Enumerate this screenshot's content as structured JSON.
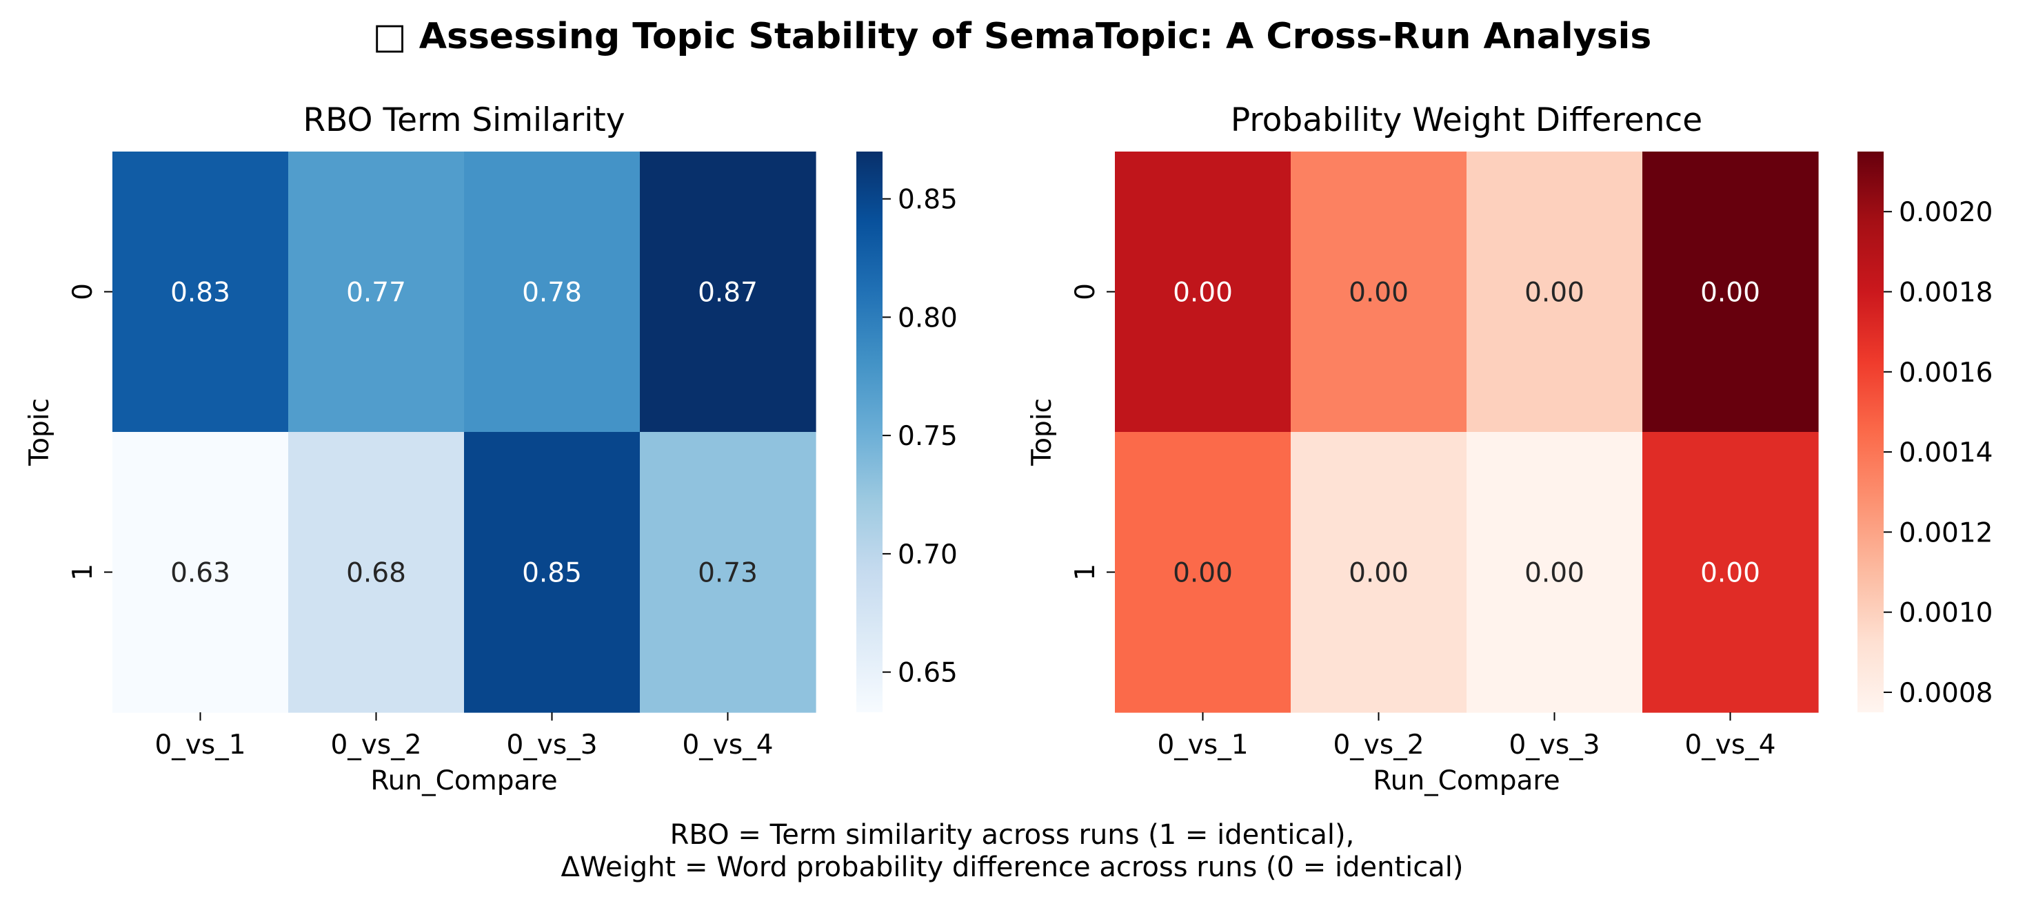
{
  "figure": {
    "title_icon": "□",
    "title": "Assessing Topic Stability of SemaTopic: A Cross-Run Analysis",
    "caption_lines": [
      "RBO = Term similarity across runs (1 = identical),",
      "ΔWeight = Word probability difference across runs (0 = identical)"
    ]
  },
  "chart_data": [
    {
      "type": "heatmap",
      "title": "RBO Term Similarity",
      "xlabel": "Run_Compare",
      "ylabel": "Topic",
      "x_categories": [
        "0_vs_1",
        "0_vs_2",
        "0_vs_3",
        "0_vs_4"
      ],
      "y_categories": [
        "0",
        "1"
      ],
      "values": [
        [
          0.83,
          0.77,
          0.78,
          0.87
        ],
        [
          0.63,
          0.68,
          0.85,
          0.73
        ]
      ],
      "cell_labels": [
        [
          "0.83",
          "0.77",
          "0.78",
          "0.87"
        ],
        [
          "0.63",
          "0.68",
          "0.85",
          "0.73"
        ]
      ],
      "colormap": "Blues",
      "colorbar": {
        "range": [
          0.633,
          0.87
        ],
        "ticks": [
          0.65,
          0.7,
          0.75,
          0.8,
          0.85
        ],
        "tick_labels": [
          "0.65",
          "0.70",
          "0.75",
          "0.80",
          "0.85"
        ]
      }
    },
    {
      "type": "heatmap",
      "title": "Probability Weight Difference",
      "xlabel": "Run_Compare",
      "ylabel": "Topic",
      "x_categories": [
        "0_vs_1",
        "0_vs_2",
        "0_vs_3",
        "0_vs_4"
      ],
      "y_categories": [
        "0",
        "1"
      ],
      "values": [
        [
          0.00185,
          0.00135,
          0.001,
          0.00215
        ],
        [
          0.00145,
          0.00091,
          0.00077,
          0.0017
        ]
      ],
      "cell_labels": [
        [
          "0.00",
          "0.00",
          "0.00",
          "0.00"
        ],
        [
          "0.00",
          "0.00",
          "0.00",
          "0.00"
        ]
      ],
      "colormap": "Reds",
      "colorbar": {
        "range": [
          0.00075,
          0.00215
        ],
        "ticks": [
          0.0008,
          0.001,
          0.0012,
          0.0014,
          0.0016,
          0.0018,
          0.002
        ],
        "tick_labels": [
          "0.0008",
          "0.0010",
          "0.0012",
          "0.0014",
          "0.0016",
          "0.0018",
          "0.0020"
        ]
      }
    }
  ],
  "colors": {
    "blues": [
      "#f7fbff",
      "#deebf7",
      "#c6dbef",
      "#9ecae1",
      "#6baed6",
      "#4292c6",
      "#2171b5",
      "#08519c",
      "#08306b"
    ],
    "reds": [
      "#fff5f0",
      "#fee0d2",
      "#fcbba1",
      "#fc9272",
      "#fb6a4a",
      "#ef3b2c",
      "#cb181d",
      "#a50f15",
      "#67000d"
    ],
    "text_dark": "#262626",
    "text_light": "#ffffff"
  }
}
